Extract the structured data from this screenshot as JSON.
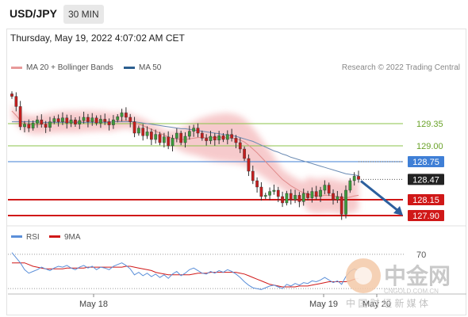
{
  "header": {
    "symbol": "USD/JPY",
    "timeframe_button": "30 MIN"
  },
  "timestamp": "Thursday, May 19, 2022 4:07:02 AM CET",
  "legend": {
    "items": [
      {
        "label": "MA 20 + Bollinger Bands",
        "color": "#e89a9a"
      },
      {
        "label": "MA 50",
        "color": "#2c5f8f"
      }
    ],
    "credit": "Research © 2022 Trading Central"
  },
  "chart_data": {
    "type": "candlestick",
    "symbol": "USD/JPY",
    "timeframe": "30 MIN",
    "ylim": [
      127.8,
      130.05
    ],
    "x_tick_labels": [
      "May 18",
      "May 19",
      "May 20"
    ],
    "horizontal_levels": [
      {
        "value": 129.35,
        "label": "129.35",
        "color": "#8bc34a",
        "kind": "resistance"
      },
      {
        "value": 129.0,
        "label": "129.00",
        "color": "#8bc34a",
        "kind": "resistance"
      },
      {
        "value": 128.75,
        "label": "128.75",
        "color": "#3f7fd6",
        "kind": "pivot"
      },
      {
        "value": 128.47,
        "label": "128.47",
        "color": "#222222",
        "kind": "last_price"
      },
      {
        "value": 128.15,
        "label": "128.15",
        "color": "#d01818",
        "kind": "support"
      },
      {
        "value": 127.9,
        "label": "127.90",
        "color": "#d01818",
        "kind": "support"
      }
    ],
    "closes": [
      129.78,
      129.62,
      129.3,
      129.34,
      129.28,
      129.36,
      129.41,
      129.34,
      129.29,
      129.38,
      129.43,
      129.38,
      129.44,
      129.36,
      129.41,
      129.34,
      129.4,
      129.45,
      129.38,
      129.44,
      129.36,
      129.42,
      129.38,
      129.33,
      129.41,
      129.46,
      129.52,
      129.45,
      129.38,
      129.2,
      129.28,
      129.16,
      129.22,
      129.1,
      129.18,
      129.05,
      129.14,
      129.0,
      129.12,
      129.2,
      129.05,
      129.15,
      129.23,
      129.28,
      129.2,
      129.12,
      129.08,
      129.15,
      129.09,
      129.16,
      129.1,
      129.18,
      129.12,
      129.05,
      128.95,
      128.8,
      128.6,
      128.45,
      128.35,
      128.2,
      128.22,
      128.28,
      128.3,
      128.2,
      128.1,
      128.25,
      128.15,
      128.22,
      128.12,
      128.25,
      128.18,
      128.28,
      128.2,
      128.3,
      128.38,
      128.25,
      128.15,
      128.2,
      127.92,
      128.3,
      128.45,
      128.52,
      128.47
    ],
    "ma20": [
      129.55,
      129.48,
      129.4,
      129.36,
      129.34,
      129.33,
      129.33,
      129.34,
      129.35,
      129.36,
      129.37,
      129.37,
      129.38,
      129.38,
      129.38,
      129.38,
      129.38,
      129.39,
      129.39,
      129.39,
      129.39,
      129.39,
      129.39,
      129.38,
      129.38,
      129.39,
      129.4,
      129.4,
      129.39,
      129.36,
      129.34,
      129.32,
      129.29,
      129.26,
      129.23,
      129.2,
      129.17,
      129.14,
      129.12,
      129.11,
      129.1,
      129.1,
      129.11,
      129.12,
      129.13,
      129.13,
      129.13,
      129.13,
      129.13,
      129.13,
      129.13,
      129.13,
      129.12,
      129.11,
      129.09,
      129.06,
      129.01,
      128.95,
      128.89,
      128.82,
      128.75,
      128.68,
      128.61,
      128.54,
      128.47,
      128.42,
      128.37,
      128.33,
      128.29,
      128.26,
      128.24,
      128.22,
      128.21,
      128.21,
      128.22,
      128.22,
      128.21,
      128.2,
      128.18,
      128.18,
      128.19,
      128.21,
      128.22
    ],
    "ma50": [
      129.38,
      129.38,
      129.38,
      129.38,
      129.38,
      129.38,
      129.38,
      129.37,
      129.37,
      129.37,
      129.37,
      129.37,
      129.37,
      129.37,
      129.37,
      129.37,
      129.37,
      129.37,
      129.37,
      129.37,
      129.37,
      129.37,
      129.37,
      129.37,
      129.38,
      129.38,
      129.38,
      129.38,
      129.38,
      129.38,
      129.37,
      129.36,
      129.35,
      129.34,
      129.33,
      129.32,
      129.31,
      129.3,
      129.29,
      129.28,
      129.27,
      129.27,
      129.26,
      129.25,
      129.24,
      129.23,
      129.22,
      129.21,
      129.2,
      129.19,
      129.18,
      129.17,
      129.16,
      129.15,
      129.13,
      129.11,
      129.09,
      129.07,
      129.04,
      129.01,
      128.98,
      128.95,
      128.92,
      128.9,
      128.87,
      128.85,
      128.82,
      128.8,
      128.78,
      128.76,
      128.74,
      128.72,
      128.7,
      128.68,
      128.66,
      128.64,
      128.62,
      128.6,
      128.58,
      128.56,
      128.55,
      128.54,
      128.53
    ],
    "forecast_arrow": {
      "from": 128.47,
      "to": 127.9,
      "color": "#2c5f9e"
    },
    "rsi_panel": {
      "legend": [
        {
          "label": "RSI",
          "color": "#5b8fd9"
        },
        {
          "label": "9MA",
          "color": "#d01818"
        }
      ],
      "ylim": [
        20,
        80
      ],
      "levels": [
        70,
        30
      ],
      "level_labels": [
        "70"
      ],
      "rsi": [
        72,
        66,
        60,
        52,
        48,
        50,
        52,
        55,
        53,
        51,
        54,
        56,
        55,
        57,
        54,
        52,
        55,
        57,
        54,
        56,
        52,
        55,
        54,
        52,
        56,
        58,
        60,
        57,
        53,
        46,
        49,
        45,
        48,
        44,
        47,
        43,
        46,
        42,
        47,
        50,
        45,
        48,
        52,
        54,
        51,
        48,
        47,
        50,
        48,
        51,
        49,
        52,
        50,
        47,
        43,
        38,
        34,
        31,
        30,
        29,
        31,
        33,
        34,
        32,
        30,
        35,
        33,
        36,
        34,
        37,
        36,
        39,
        38,
        40,
        43,
        40,
        37,
        39,
        35,
        44,
        50,
        53,
        51
      ],
      "ma9": [
        60,
        60,
        60,
        60,
        58,
        56,
        55,
        54,
        53,
        53,
        53,
        53,
        53,
        54,
        54,
        54,
        54,
        54,
        55,
        55,
        55,
        55,
        55,
        55,
        55,
        55,
        55,
        56,
        56,
        55,
        54,
        53,
        52,
        51,
        49,
        48,
        47,
        46,
        46,
        46,
        46,
        46,
        46,
        47,
        48,
        48,
        48,
        49,
        49,
        49,
        49,
        49,
        49,
        49,
        48,
        47,
        45,
        43,
        41,
        39,
        37,
        35,
        34,
        33,
        32,
        32,
        32,
        32,
        33,
        33,
        33,
        34,
        35,
        36,
        37,
        38,
        38,
        38,
        38,
        38,
        39,
        41,
        42
      ]
    }
  },
  "watermark": {
    "logo_text": "中金网",
    "url": "CNGOLD.COM.CN",
    "tagline": "中 国 财 经 新 媒 体"
  }
}
